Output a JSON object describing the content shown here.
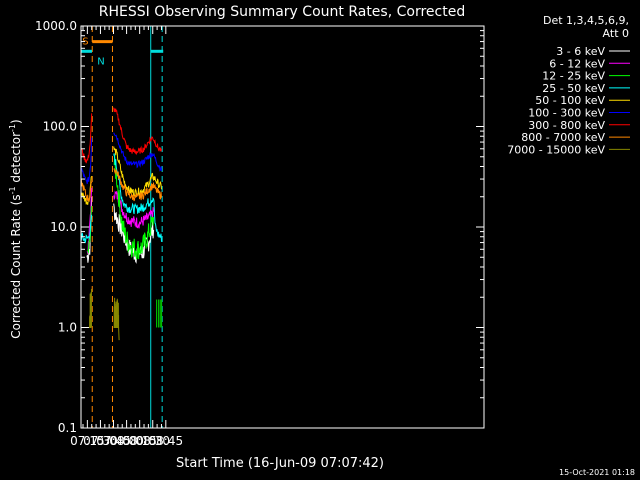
{
  "chart_data": {
    "type": "line",
    "title": "RHESSI Observing Summary Count Rates, Corrected",
    "xlabel": "Start Time (16-Jun-09 07:07:42)",
    "ylabel_main": "Corrected Count Rate (s",
    "ylabel_sup1": "-1",
    "ylabel_mid": " detector",
    "ylabel_sup2": "-1",
    "ylabel_end": ")",
    "y_scale": "log",
    "ylim": [
      0.1,
      1000
    ],
    "xlim_min": [
      427.7,
      890
    ],
    "x_unit": "minutes after 00:00 UT",
    "x_ticks": [
      {
        "t": 435,
        "label": "07:15"
      },
      {
        "t": 450,
        "label": "07:30"
      },
      {
        "t": 465,
        "label": "07:45"
      },
      {
        "t": 480,
        "label": "08:00"
      },
      {
        "t": 495,
        "label": "08:15"
      },
      {
        "t": 510,
        "label": "08:30"
      },
      {
        "t": 525,
        "label": "08:45"
      }
    ],
    "y_ticks": [
      {
        "v": 0.1,
        "label": "0.1"
      },
      {
        "v": 1,
        "label": "1.0"
      },
      {
        "v": 10,
        "label": "10.0"
      },
      {
        "v": 100,
        "label": "100.0"
      },
      {
        "v": 1000,
        "label": "1000.0"
      }
    ],
    "legend_header": [
      "Det 1,3,4,5,6,9,",
      "Att 0"
    ],
    "legend_position": "right",
    "footer_date": "15-Oct-2021 01:18",
    "saa_label": "S",
    "night_label": "N",
    "markers": [
      {
        "t": 427.7,
        "color": "#00dddd",
        "style": "solid"
      },
      {
        "t": 440.6,
        "color": "#ff8800",
        "style": "dashed"
      },
      {
        "t": 463.8,
        "color": "#ff8800",
        "style": "dashed"
      },
      {
        "t": 507.7,
        "color": "#00dddd",
        "style": "solid"
      },
      {
        "t": 520.8,
        "color": "#00dddd",
        "style": "dashed"
      }
    ],
    "flags": [
      {
        "name": "saa",
        "color": "#ff8800",
        "t0": 440.6,
        "t1": 463.8,
        "level": 700
      },
      {
        "name": "night",
        "color": "#00dddd",
        "t0": 427.7,
        "t1": 440.3,
        "level": 560
      },
      {
        "name": "night",
        "color": "#00dddd",
        "t0": 507.7,
        "t1": 522,
        "level": 560
      }
    ],
    "series": [
      {
        "name": "3 - 6 keV",
        "color": "#ffffff",
        "noise": 0.1,
        "seg1": [
          [
            434.5,
            5.0
          ],
          [
            436.5,
            5.5
          ],
          [
            438.5,
            7
          ],
          [
            440,
            22
          ]
        ],
        "seg2": [
          [
            465.2,
            15
          ],
          [
            468,
            13
          ],
          [
            471,
            11
          ],
          [
            475,
            9
          ],
          [
            480,
            7
          ],
          [
            484,
            6
          ],
          [
            490,
            5.5
          ],
          [
            498,
            5.5
          ],
          [
            505,
            7
          ],
          [
            508,
            8.5
          ],
          [
            511,
            10
          ]
        ]
      },
      {
        "name": "6 - 12 keV",
        "color": "#ff00ff",
        "noise": 0.06,
        "seg1": [
          [
            434.5,
            5.5
          ],
          [
            436.5,
            6.5
          ],
          [
            438.5,
            14
          ],
          [
            440,
            22
          ]
        ],
        "seg2": [
          [
            465.2,
            22
          ],
          [
            467,
            21
          ],
          [
            470,
            20
          ],
          [
            475,
            15
          ],
          [
            480,
            12.5
          ],
          [
            485,
            11.5
          ],
          [
            495,
            11
          ],
          [
            503,
            12
          ],
          [
            508,
            13
          ],
          [
            511,
            14
          ]
        ]
      },
      {
        "name": "12 - 25 keV",
        "color": "#00ff00",
        "noise": 0.11,
        "seg1": [
          [
            435.5,
            5.5
          ],
          [
            437.5,
            6.5
          ],
          [
            439,
            10
          ],
          [
            440.2,
            20
          ]
        ],
        "seg2": [
          [
            465.2,
            45
          ],
          [
            467,
            38
          ],
          [
            469,
            30
          ],
          [
            471,
            20
          ],
          [
            475,
            10.5
          ],
          [
            480,
            7.5
          ],
          [
            485,
            6.5
          ],
          [
            492,
            6
          ],
          [
            498,
            6.3
          ],
          [
            504,
            8
          ],
          [
            508,
            10
          ],
          [
            511,
            12
          ]
        ]
      },
      {
        "name": "25 - 50 keV",
        "color": "#00ffff",
        "noise": 0.05,
        "seg1": [
          [
            428,
            8
          ],
          [
            432,
            7.5
          ],
          [
            436,
            7.8
          ],
          [
            438,
            9
          ],
          [
            440,
            12
          ]
        ],
        "seg2": [
          [
            465.2,
            52
          ],
          [
            467,
            45
          ],
          [
            470,
            35
          ],
          [
            473,
            22
          ],
          [
            477,
            17
          ],
          [
            482,
            15.5
          ],
          [
            490,
            15
          ],
          [
            498,
            15.5
          ],
          [
            505,
            17.5
          ],
          [
            511,
            20
          ],
          [
            512.8,
            10
          ],
          [
            516,
            8.5
          ],
          [
            520,
            7.8
          ]
        ]
      },
      {
        "name": "50 - 100 keV",
        "color": "#ffdd00",
        "noise": 0.04,
        "seg1": [
          [
            428,
            22
          ],
          [
            431,
            20
          ],
          [
            434,
            18
          ],
          [
            437,
            18.5
          ],
          [
            440,
            35
          ]
        ],
        "seg2": [
          [
            465.2,
            60
          ],
          [
            468,
            55
          ],
          [
            471,
            45
          ],
          [
            474,
            35
          ],
          [
            478,
            27
          ],
          [
            483,
            23
          ],
          [
            490,
            22
          ],
          [
            498,
            23
          ],
          [
            505,
            27
          ],
          [
            510,
            32
          ],
          [
            512.8,
            30
          ],
          [
            516,
            27
          ],
          [
            520,
            25
          ]
        ]
      },
      {
        "name": "100 - 300 keV",
        "color": "#0000ff",
        "noise": 0.03,
        "seg1": [
          [
            428,
            38
          ],
          [
            431,
            32
          ],
          [
            434,
            28
          ],
          [
            437,
            30
          ],
          [
            439,
            45
          ],
          [
            440,
            80
          ]
        ],
        "seg2": [
          [
            465.2,
            90
          ],
          [
            468,
            82
          ],
          [
            471,
            70
          ],
          [
            475,
            55
          ],
          [
            480,
            45
          ],
          [
            485,
            42
          ],
          [
            493,
            42
          ],
          [
            500,
            45
          ],
          [
            506,
            51
          ],
          [
            510,
            54
          ],
          [
            512.8,
            48
          ],
          [
            516,
            42
          ],
          [
            520,
            37
          ]
        ]
      },
      {
        "name": "300 - 800 keV",
        "color": "#ff0000",
        "noise": 0.03,
        "seg1": [
          [
            428,
            60
          ],
          [
            431,
            50
          ],
          [
            434,
            45
          ],
          [
            436,
            48
          ],
          [
            438.5,
            70
          ],
          [
            440,
            130
          ]
        ],
        "seg2": [
          [
            465.2,
            150
          ],
          [
            468,
            140
          ],
          [
            471,
            115
          ],
          [
            475,
            85
          ],
          [
            480,
            63
          ],
          [
            485,
            57
          ],
          [
            493,
            56
          ],
          [
            500,
            60
          ],
          [
            506,
            72
          ],
          [
            510,
            78
          ],
          [
            512.8,
            70
          ],
          [
            516,
            62
          ],
          [
            520,
            56
          ]
        ]
      },
      {
        "name": "800 - 7000 keV",
        "color": "#ff8800",
        "noise": 0.04,
        "seg1": [
          [
            428,
            28
          ],
          [
            431,
            24
          ],
          [
            434,
            20
          ],
          [
            437,
            19
          ],
          [
            439,
            23
          ],
          [
            440,
            30
          ]
        ],
        "seg2": [
          [
            465.2,
            38
          ],
          [
            468,
            36
          ],
          [
            471,
            32
          ],
          [
            475,
            26
          ],
          [
            480,
            22
          ],
          [
            486,
            20
          ],
          [
            493,
            19.5
          ],
          [
            500,
            21
          ],
          [
            506,
            24
          ],
          [
            510,
            26
          ],
          [
            512.8,
            24
          ],
          [
            516,
            22
          ],
          [
            520,
            20.5
          ]
        ]
      },
      {
        "name": "7000 - 15000 keV",
        "color": "#888800",
        "noise": 0,
        "seg1": [
          [
            428,
            1.0
          ],
          [
            439.5,
            1.0
          ]
        ],
        "seg2": [
          [
            465.2,
            1.0
          ],
          [
            471,
            1.0
          ],
          [
            471.2,
            0.75
          ],
          [
            471.4,
            0.75
          ]
        ]
      }
    ]
  }
}
